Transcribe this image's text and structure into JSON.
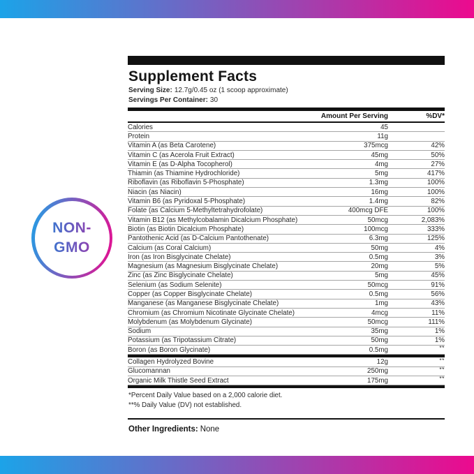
{
  "colors": {
    "gradient_start": "#1CA3E8",
    "gradient_end": "#EC0A8E",
    "badge_text_start": "#3E74CE",
    "badge_text_end": "#9040B0"
  },
  "badge": {
    "line1": "NON-",
    "line2": "GMO"
  },
  "panel": {
    "title": "Supplement Facts",
    "serving_size_label": "Serving Size:",
    "serving_size_value": "12.7g/0.45 oz (1 scoop approximate)",
    "servings_label": "Servings Per Container:",
    "servings_value": "30",
    "col_amount": "Amount Per Serving",
    "col_dv": "%DV*",
    "rows": [
      {
        "name": "Calories",
        "amount": "45",
        "dv": ""
      },
      {
        "name": "Protein",
        "amount": "11g",
        "dv": ""
      },
      {
        "name": "Vitamin A (as Beta Carotene)",
        "amount": "375mcg",
        "dv": "42%"
      },
      {
        "name": "Vitamin C (as Acerola Fruit Extract)",
        "amount": "45mg",
        "dv": "50%"
      },
      {
        "name": "Vitamin E (as D-Alpha Tocopherol)",
        "amount": "4mg",
        "dv": "27%"
      },
      {
        "name": "Thiamin (as Thiamine Hydrochloride)",
        "amount": "5mg",
        "dv": "417%"
      },
      {
        "name": "Riboflavin (as Riboflavin 5-Phosphate)",
        "amount": "1.3mg",
        "dv": "100%"
      },
      {
        "name": "Niacin (as Niacin)",
        "amount": "16mg",
        "dv": "100%"
      },
      {
        "name": "Vitamin B6 (as Pyridoxal 5-Phosphate)",
        "amount": "1.4mg",
        "dv": "82%"
      },
      {
        "name": "Folate (as Calcium 5-Methyltetrahydrofolate)",
        "amount": "400mcg DFE",
        "dv": "100%"
      },
      {
        "name": "Vitamin B12 (as Methylcobalamin Dicalcium Phosphate)",
        "amount": "50mcg",
        "dv": "2,083%"
      },
      {
        "name": "Biotin (as Biotin Dicalcium Phosphate)",
        "amount": "100mcg",
        "dv": "333%"
      },
      {
        "name": "Pantothenic Acid (as D-Calcium Pantothenate)",
        "amount": "6.3mg",
        "dv": "125%"
      },
      {
        "name": "Calcium (as Coral Calcium)",
        "amount": "50mg",
        "dv": "4%"
      },
      {
        "name": "Iron (as Iron Bisglycinate Chelate)",
        "amount": "0.5mg",
        "dv": "3%"
      },
      {
        "name": "Magnesium (as Magnesium Bisglycinate Chelate)",
        "amount": "20mg",
        "dv": "5%"
      },
      {
        "name": "Zinc (as Zinc Bisglycinate Chelate)",
        "amount": "5mg",
        "dv": "45%"
      },
      {
        "name": "Selenium (as Sodium Selenite)",
        "amount": "50mcg",
        "dv": "91%"
      },
      {
        "name": "Copper (as Copper Bisglycinate Chelate)",
        "amount": "0.5mg",
        "dv": "56%"
      },
      {
        "name": "Manganese (as Manganese Bisglycinate Chelate)",
        "amount": "1mg",
        "dv": "43%"
      },
      {
        "name": "Chromium (as Chromium Nicotinate Glycinate Chelate)",
        "amount": "4mcg",
        "dv": "11%"
      },
      {
        "name": "Molybdenum (as Molybdenum Glycinate)",
        "amount": "50mcg",
        "dv": "111%"
      },
      {
        "name": "Sodium",
        "amount": "35mg",
        "dv": "1%"
      },
      {
        "name": "Potassium (as Tripotassium Citrate)",
        "amount": "50mg",
        "dv": "1%"
      },
      {
        "name": "Boron (as Boron Glycinate)",
        "amount": "0.5mg",
        "dv": "**"
      }
    ],
    "extra_rows": [
      {
        "name": "Collagen Hydrolyzed Bovine",
        "amount": "12g",
        "dv": "**"
      },
      {
        "name": "Glucomannan",
        "amount": "250mg",
        "dv": "**"
      },
      {
        "name": "Organic Milk Thistle Seed Extract",
        "amount": "175mg",
        "dv": "**"
      }
    ],
    "footnotes": [
      "*Percent Daily Value based on a 2,000 calorie diet.",
      "**% Daily Value (DV) not established."
    ],
    "other_ingredients_label": "Other Ingredients:",
    "other_ingredients_value": "None"
  }
}
